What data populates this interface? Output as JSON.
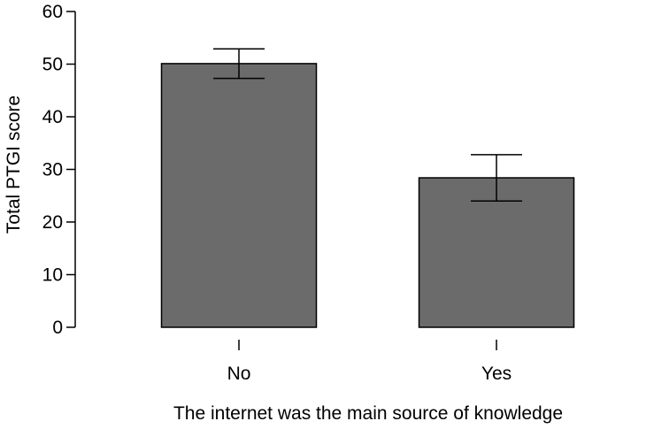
{
  "chart_data": {
    "type": "bar",
    "categories": [
      "No",
      "Yes"
    ],
    "values": [
      50.1,
      28.4
    ],
    "error_bars": {
      "lower": [
        47.3,
        24.0
      ],
      "upper": [
        52.9,
        32.8
      ]
    },
    "xlabel": "The internet was the main source of knowledge",
    "ylabel": "Total PTGI score",
    "ylim": [
      0,
      60
    ],
    "yticks": [
      0,
      10,
      20,
      30,
      40,
      50,
      60
    ],
    "grid": false,
    "bar_color": "#6b6b6b",
    "edge_color": "#000000"
  }
}
